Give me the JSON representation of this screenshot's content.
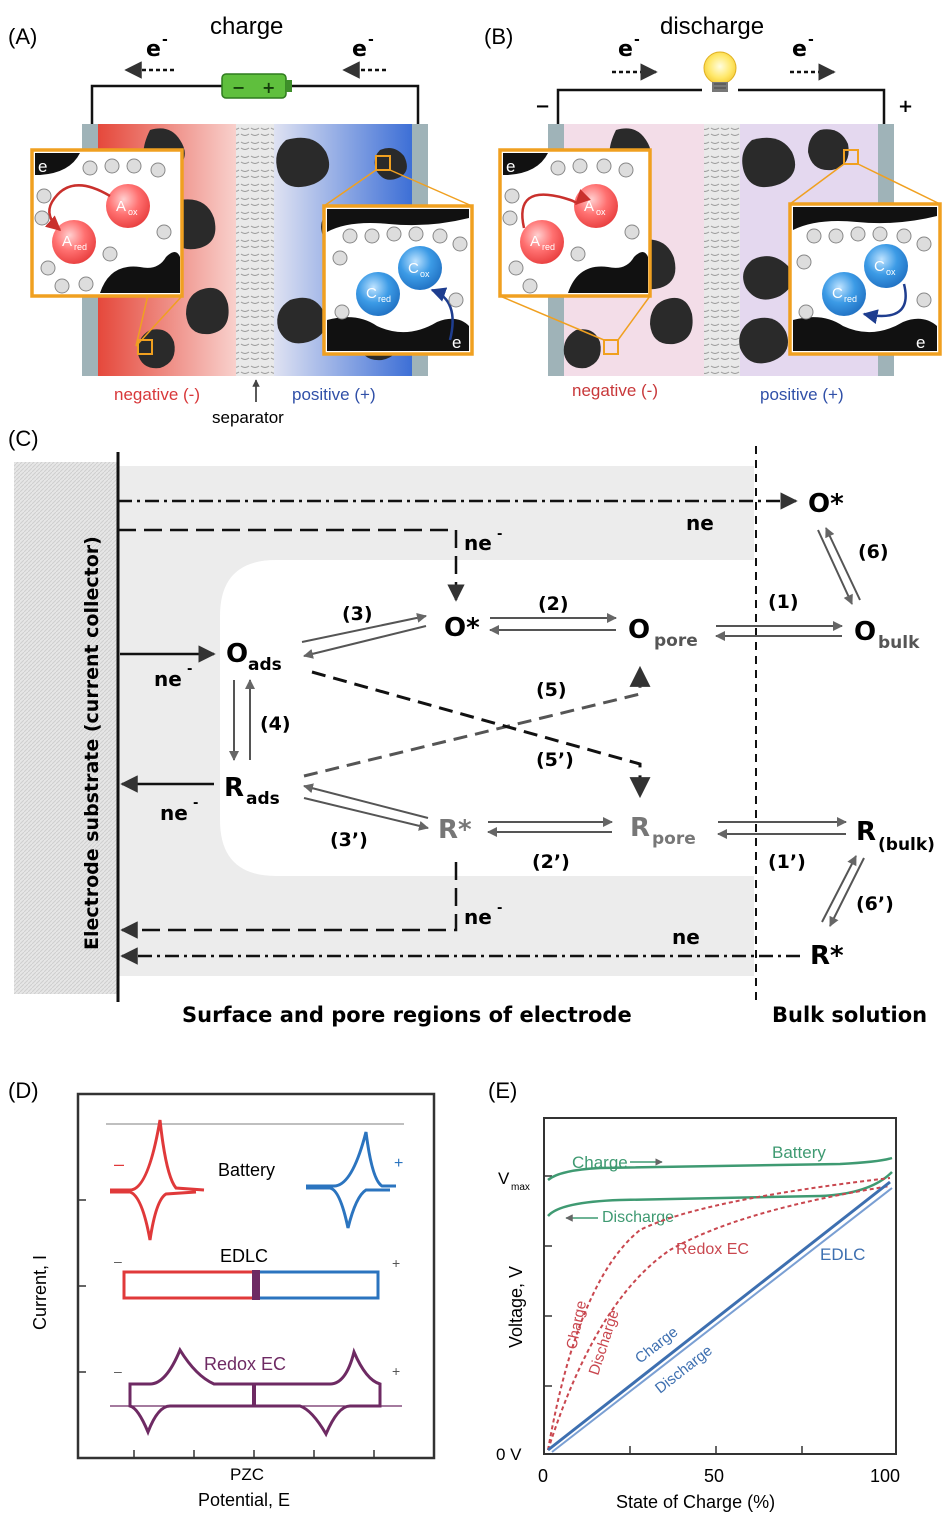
{
  "panels": {
    "a": {
      "letter": "(A)",
      "title": "charge",
      "electron_left": "e",
      "electron_right": "e",
      "electron_sup": "-",
      "battery_minus": "−",
      "battery_plus": "+",
      "inset_left_ox": "A",
      "inset_left_ox_sub": "ox",
      "inset_left_red": "A",
      "inset_left_red_sub": "red",
      "inset_right_ox": "C",
      "inset_right_ox_sub": "ox",
      "inset_right_red": "C",
      "inset_right_red_sub": "red",
      "inset_e": "e",
      "label_negative": "negative (-)",
      "label_positive": "positive (+)",
      "label_separator": "separator"
    },
    "b": {
      "letter": "(B)",
      "title": "discharge",
      "electron_left": "e",
      "electron_right": "e",
      "electron_sup": "-",
      "terminal_minus": "−",
      "terminal_plus": "+",
      "inset_left_ox": "A",
      "inset_left_ox_sub": "ox",
      "inset_left_red": "A",
      "inset_left_red_sub": "red",
      "inset_right_ox": "C",
      "inset_right_ox_sub": "ox",
      "inset_right_red": "C",
      "inset_right_red_sub": "red",
      "inset_e": "e",
      "label_negative": "negative (-)",
      "label_positive": "positive (+)"
    },
    "c": {
      "letter": "(C)",
      "vertical_label": "Electrode substrate (current collector)",
      "region_surface": "Surface and pore regions of electrode",
      "region_bulk": "Bulk solution",
      "species": {
        "o_ads": "O",
        "o_ads_sub": "ads",
        "r_ads": "R",
        "r_ads_sub": "ads",
        "o_star": "O*",
        "r_star": "R*",
        "o_pore": "O",
        "o_pore_sub": "pore",
        "r_pore": "R",
        "r_pore_sub": "pore",
        "o_bulk": "O",
        "o_bulk_sub": "bulk",
        "r_bulk": "R",
        "r_bulk_sub": "(bulk)",
        "o_star_bulk": "O*",
        "r_star_bulk": "R*"
      },
      "steps": {
        "s1": "(1)",
        "s1p": "(1’)",
        "s2": "(2)",
        "s2p": "(2’)",
        "s3": "(3)",
        "s3p": "(3’)",
        "s4": "(4)",
        "s5": "(5)",
        "s5p": "(5’)",
        "s6": "(6)",
        "s6p": "(6’)"
      },
      "ne": "ne",
      "ne_sup": "-"
    },
    "d": {
      "letter": "(D)",
      "battery": "Battery",
      "edlc": "EDLC",
      "redox": "Redox EC",
      "minus": "–",
      "plus": "+",
      "y_axis": "Current, I",
      "x_tick": "PZC",
      "x_axis": "Potential, E",
      "colors": {
        "neg": "#e0393a",
        "pos": "#2b74bf",
        "redox": "#6e2a63"
      }
    },
    "e": {
      "letter": "(E)",
      "y_axis": "Voltage, V",
      "x_axis": "State of Charge (%)",
      "vmax": "V",
      "vmax_sub": "max",
      "zero_v": "0 V",
      "x_ticks": [
        "0",
        "50",
        "100"
      ],
      "battery": "Battery",
      "battery_charge": "Charge",
      "battery_discharge": "Discharge",
      "redox": "Redox EC",
      "redox_charge": "Charge",
      "redox_discharge": "Discharge",
      "edlc": "EDLC",
      "edlc_charge": "Charge",
      "edlc_discharge": "Discharge",
      "colors": {
        "battery": "#3f9a72",
        "redox": "#c9474f",
        "edlc": "#3d6fb0"
      }
    }
  }
}
